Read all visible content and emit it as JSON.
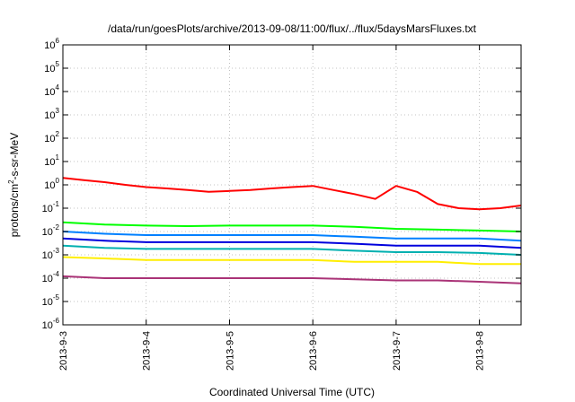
{
  "chart_data": {
    "type": "line",
    "title": "/data/run/goesPlots/archive/2013-09-08/11:00/flux/../flux/5daysMarsFluxes.txt",
    "xlabel": "Coordinated Universal Time (UTC)",
    "ylabel_parts": {
      "before": "protons/cm",
      "sup": "2",
      "after": "-s-sr-MeV"
    },
    "y_scale": "log",
    "ylim": [
      1e-06,
      1000000.0
    ],
    "y_ticks": [
      {
        "base": "10",
        "exp": "-6"
      },
      {
        "base": "10",
        "exp": "-5"
      },
      {
        "base": "10",
        "exp": "-4"
      },
      {
        "base": "10",
        "exp": "-3"
      },
      {
        "base": "10",
        "exp": "-2"
      },
      {
        "base": "10",
        "exp": "-1"
      },
      {
        "base": "10",
        "exp": "0"
      },
      {
        "base": "10",
        "exp": "1"
      },
      {
        "base": "10",
        "exp": "2"
      },
      {
        "base": "10",
        "exp": "3"
      },
      {
        "base": "10",
        "exp": "4"
      },
      {
        "base": "10",
        "exp": "5"
      },
      {
        "base": "10",
        "exp": "6"
      }
    ],
    "x_range": [
      "2013-09-03 00:00",
      "2013-09-08 12:00"
    ],
    "x_ticks": [
      "2013-9-3",
      "2013-9-4",
      "2013-9-5",
      "2013-9-6",
      "2013-9-7",
      "2013-9-8"
    ],
    "grid": true,
    "series": [
      {
        "color": "#ff0000",
        "x": [
          "2013-09-03 00:00",
          "2013-09-03 06:00",
          "2013-09-03 12:00",
          "2013-09-03 18:00",
          "2013-09-04 00:00",
          "2013-09-04 06:00",
          "2013-09-04 12:00",
          "2013-09-04 18:00",
          "2013-09-05 00:00",
          "2013-09-05 06:00",
          "2013-09-05 12:00",
          "2013-09-05 18:00",
          "2013-09-06 00:00",
          "2013-09-06 06:00",
          "2013-09-06 12:00",
          "2013-09-06 18:00",
          "2013-09-07 00:00",
          "2013-09-07 06:00",
          "2013-09-07 12:00",
          "2013-09-07 18:00",
          "2013-09-08 00:00",
          "2013-09-08 06:00",
          "2013-09-08 12:00"
        ],
        "y": [
          2.0,
          1.6,
          1.3,
          1.0,
          0.8,
          0.7,
          0.6,
          0.5,
          0.55,
          0.6,
          0.7,
          0.8,
          0.9,
          0.6,
          0.4,
          0.25,
          0.9,
          0.5,
          0.15,
          0.1,
          0.09,
          0.1,
          0.13
        ]
      },
      {
        "color": "#00ff00",
        "x": [
          "2013-09-03 00:00",
          "2013-09-03 12:00",
          "2013-09-04 00:00",
          "2013-09-04 12:00",
          "2013-09-05 00:00",
          "2013-09-05 12:00",
          "2013-09-06 00:00",
          "2013-09-06 12:00",
          "2013-09-07 00:00",
          "2013-09-07 12:00",
          "2013-09-08 00:00",
          "2013-09-08 12:00"
        ],
        "y": [
          0.025,
          0.02,
          0.018,
          0.017,
          0.018,
          0.018,
          0.018,
          0.016,
          0.013,
          0.012,
          0.011,
          0.01
        ]
      },
      {
        "color": "#0080ff",
        "x": [
          "2013-09-03 00:00",
          "2013-09-03 12:00",
          "2013-09-04 00:00",
          "2013-09-04 12:00",
          "2013-09-05 00:00",
          "2013-09-05 12:00",
          "2013-09-06 00:00",
          "2013-09-06 12:00",
          "2013-09-07 00:00",
          "2013-09-07 12:00",
          "2013-09-08 00:00",
          "2013-09-08 12:00"
        ],
        "y": [
          0.01,
          0.008,
          0.007,
          0.007,
          0.007,
          0.007,
          0.007,
          0.006,
          0.005,
          0.005,
          0.005,
          0.004
        ]
      },
      {
        "color": "#0000dd",
        "x": [
          "2013-09-03 00:00",
          "2013-09-03 12:00",
          "2013-09-04 00:00",
          "2013-09-04 12:00",
          "2013-09-05 00:00",
          "2013-09-05 12:00",
          "2013-09-06 00:00",
          "2013-09-06 12:00",
          "2013-09-07 00:00",
          "2013-09-07 12:00",
          "2013-09-08 00:00",
          "2013-09-08 12:00"
        ],
        "y": [
          0.005,
          0.004,
          0.0035,
          0.0035,
          0.0035,
          0.0035,
          0.0035,
          0.003,
          0.0025,
          0.0025,
          0.0025,
          0.002
        ]
      },
      {
        "color": "#00b0b0",
        "x": [
          "2013-09-03 00:00",
          "2013-09-03 12:00",
          "2013-09-04 00:00",
          "2013-09-04 12:00",
          "2013-09-05 00:00",
          "2013-09-05 12:00",
          "2013-09-06 00:00",
          "2013-09-06 12:00",
          "2013-09-07 00:00",
          "2013-09-07 12:00",
          "2013-09-08 00:00",
          "2013-09-08 12:00"
        ],
        "y": [
          0.0025,
          0.002,
          0.0018,
          0.0018,
          0.0018,
          0.0018,
          0.0018,
          0.0015,
          0.0013,
          0.0013,
          0.0012,
          0.001
        ]
      },
      {
        "color": "#ffee00",
        "x": [
          "2013-09-03 00:00",
          "2013-09-03 12:00",
          "2013-09-04 00:00",
          "2013-09-04 12:00",
          "2013-09-05 00:00",
          "2013-09-05 12:00",
          "2013-09-06 00:00",
          "2013-09-06 12:00",
          "2013-09-07 00:00",
          "2013-09-07 12:00",
          "2013-09-08 00:00",
          "2013-09-08 12:00"
        ],
        "y": [
          0.0008,
          0.0007,
          0.0006,
          0.0006,
          0.0006,
          0.0006,
          0.0006,
          0.0005,
          0.0005,
          0.0005,
          0.0004,
          0.0004
        ]
      },
      {
        "color": "#aa3377",
        "x": [
          "2013-09-03 00:00",
          "2013-09-03 12:00",
          "2013-09-04 00:00",
          "2013-09-04 12:00",
          "2013-09-05 00:00",
          "2013-09-05 12:00",
          "2013-09-06 00:00",
          "2013-09-06 12:00",
          "2013-09-07 00:00",
          "2013-09-07 12:00",
          "2013-09-08 00:00",
          "2013-09-08 12:00"
        ],
        "y": [
          0.00012,
          0.0001,
          0.0001,
          0.0001,
          0.0001,
          0.0001,
          0.0001,
          9e-05,
          8e-05,
          8e-05,
          7e-05,
          6e-05
        ]
      }
    ]
  }
}
